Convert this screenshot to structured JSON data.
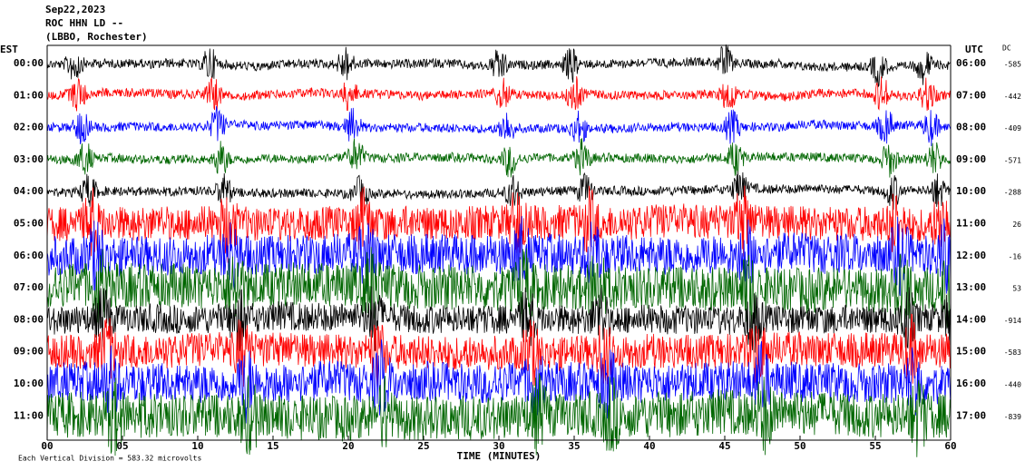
{
  "header": {
    "lines": [
      "Sep22,2023",
      "ROC HHN LD --",
      "(LBBO, Rochester)"
    ]
  },
  "left_axis": {
    "title": "EST",
    "labels": [
      "00:00",
      "01:00",
      "02:00",
      "03:00",
      "04:00",
      "05:00",
      "06:00",
      "07:00",
      "08:00",
      "09:00",
      "10:00",
      "11:00"
    ]
  },
  "right_axis": {
    "title": "UTC",
    "labels": [
      "06:00",
      "07:00",
      "08:00",
      "09:00",
      "10:00",
      "11:00",
      "12:00",
      "13:00",
      "14:00",
      "15:00",
      "16:00",
      "17:00"
    ]
  },
  "dc": {
    "title": "DC",
    "values": [
      "-585",
      "-442",
      "-409",
      "-571",
      "-288",
      "26",
      "-16",
      "53",
      "-914",
      "-583",
      "-440",
      "-839"
    ]
  },
  "x_axis": {
    "title": "TIME (MINUTES)",
    "labels": [
      "00",
      "05",
      "10",
      "15",
      "20",
      "25",
      "30",
      "35",
      "40",
      "45",
      "50",
      "55",
      "60"
    ]
  },
  "footer": {
    "text": "Each Vertical Division = 583.32 microvolts"
  }
}
